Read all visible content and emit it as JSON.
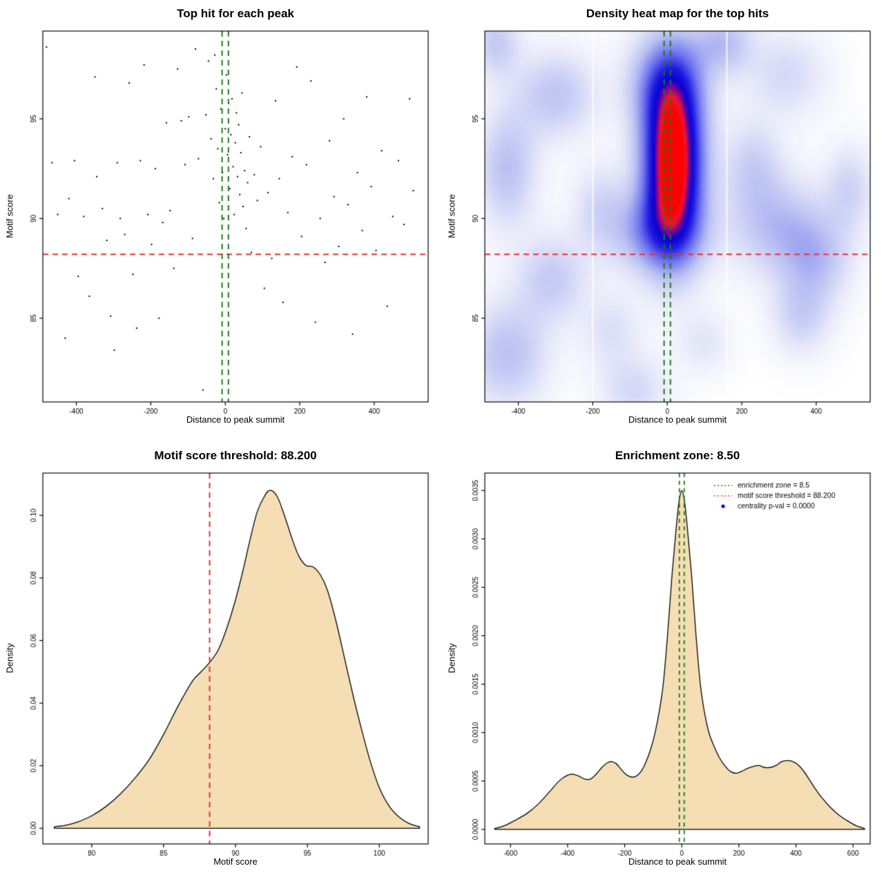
{
  "page": {
    "background": "#ffffff"
  },
  "chart_data": [
    {
      "id": "top-hit-scatter",
      "type": "scatter",
      "title": "Top hit for each peak",
      "xlabel": "Distance to peak summit",
      "ylabel": "Motif score",
      "xlim": [
        -490,
        545
      ],
      "ylim": [
        80.8,
        99.4
      ],
      "xticks": {
        "values": [
          -400,
          -200,
          0,
          200,
          400
        ],
        "labels": [
          "-400",
          "-200",
          "0",
          "200",
          "400"
        ]
      },
      "yticks": {
        "values": [
          85,
          90,
          95
        ],
        "labels": [
          "85",
          "90",
          "95"
        ]
      },
      "hline": {
        "y": 88.2,
        "color": "#e63030",
        "dash": [
          8,
          6
        ],
        "width": 2
      },
      "vlines": {
        "x": [
          -8.5,
          8.5
        ],
        "color": "#1b7a1b",
        "dash": [
          8,
          6
        ],
        "width": 2
      },
      "point_color": "#000000",
      "points": [
        [
          -480,
          98.6
        ],
        [
          -465,
          92.8
        ],
        [
          -450,
          90.2
        ],
        [
          -430,
          84.0
        ],
        [
          -420,
          91.0
        ],
        [
          -405,
          92.9
        ],
        [
          -395,
          87.1
        ],
        [
          -380,
          90.1
        ],
        [
          -365,
          86.1
        ],
        [
          -350,
          97.1
        ],
        [
          -345,
          92.1
        ],
        [
          -330,
          90.5
        ],
        [
          -318,
          88.9
        ],
        [
          -308,
          85.1
        ],
        [
          -298,
          83.4
        ],
        [
          -290,
          92.8
        ],
        [
          -282,
          90.0
        ],
        [
          -270,
          89.2
        ],
        [
          -258,
          96.8
        ],
        [
          -248,
          87.2
        ],
        [
          -238,
          84.5
        ],
        [
          -228,
          92.9
        ],
        [
          -218,
          97.7
        ],
        [
          -208,
          90.2
        ],
        [
          -198,
          88.7
        ],
        [
          -188,
          92.5
        ],
        [
          -178,
          85.0
        ],
        [
          -168,
          89.8
        ],
        [
          -158,
          94.8
        ],
        [
          -148,
          90.4
        ],
        [
          -138,
          87.5
        ],
        [
          -128,
          97.5
        ],
        [
          -118,
          94.9
        ],
        [
          -108,
          92.7
        ],
        [
          -98,
          95.1
        ],
        [
          -88,
          89.0
        ],
        [
          -80,
          98.5
        ],
        [
          -72,
          93.0
        ],
        [
          -60,
          81.4
        ],
        [
          -52,
          95.2
        ],
        [
          -45,
          97.9
        ],
        [
          -38,
          94.0
        ],
        [
          -32,
          92.0
        ],
        [
          -28,
          98.2
        ],
        [
          -24,
          96.5
        ],
        [
          -20,
          93.5
        ],
        [
          -16,
          90.8
        ],
        [
          -12,
          95.5
        ],
        [
          -8,
          92.3
        ],
        [
          -4,
          90.0
        ],
        [
          0,
          94.5
        ],
        [
          3,
          97.2
        ],
        [
          6,
          93.2
        ],
        [
          9,
          95.8
        ],
        [
          12,
          91.5
        ],
        [
          15,
          94.2
        ],
        [
          18,
          96.0
        ],
        [
          21,
          92.6
        ],
        [
          24,
          90.2
        ],
        [
          27,
          93.8
        ],
        [
          30,
          95.3
        ],
        [
          33,
          92.1
        ],
        [
          36,
          94.7
        ],
        [
          39,
          91.2
        ],
        [
          42,
          93.3
        ],
        [
          45,
          96.3
        ],
        [
          48,
          90.6
        ],
        [
          52,
          92.4
        ],
        [
          56,
          89.5
        ],
        [
          60,
          91.8
        ],
        [
          65,
          94.1
        ],
        [
          70,
          88.3
        ],
        [
          78,
          92.2
        ],
        [
          86,
          90.9
        ],
        [
          95,
          93.6
        ],
        [
          105,
          86.5
        ],
        [
          115,
          91.3
        ],
        [
          125,
          88.0
        ],
        [
          135,
          95.9
        ],
        [
          145,
          92.0
        ],
        [
          155,
          85.8
        ],
        [
          168,
          90.3
        ],
        [
          180,
          93.1
        ],
        [
          192,
          97.6
        ],
        [
          205,
          89.1
        ],
        [
          218,
          92.7
        ],
        [
          230,
          96.9
        ],
        [
          242,
          84.8
        ],
        [
          255,
          90.0
        ],
        [
          268,
          87.8
        ],
        [
          280,
          93.9
        ],
        [
          292,
          91.1
        ],
        [
          305,
          88.6
        ],
        [
          318,
          95.0
        ],
        [
          330,
          90.7
        ],
        [
          342,
          84.2
        ],
        [
          355,
          92.3
        ],
        [
          368,
          89.4
        ],
        [
          380,
          96.1
        ],
        [
          392,
          91.6
        ],
        [
          405,
          88.4
        ],
        [
          420,
          93.4
        ],
        [
          435,
          85.6
        ],
        [
          450,
          90.1
        ],
        [
          465,
          92.9
        ],
        [
          480,
          89.7
        ],
        [
          495,
          96.0
        ],
        [
          505,
          91.4
        ]
      ]
    },
    {
      "id": "density-heatmap",
      "type": "heatmap",
      "title": "Density heat map for the top hits",
      "xlabel": "Distance to peak summit",
      "ylabel": "Motif score",
      "xlim": [
        -490,
        545
      ],
      "ylim": [
        80.8,
        99.4
      ],
      "xticks": {
        "values": [
          -400,
          -200,
          0,
          200,
          400
        ],
        "labels": [
          "-400",
          "-200",
          "0",
          "200",
          "400"
        ]
      },
      "yticks": {
        "values": [
          85,
          90,
          95
        ],
        "labels": [
          "85",
          "90",
          "95"
        ]
      },
      "hline": {
        "y": 88.2,
        "color": "#e63030",
        "dash": [
          8,
          6
        ],
        "width": 2
      },
      "vlines": {
        "x": [
          -8.5,
          8.5
        ],
        "color": "#1b7a1b",
        "dash": [
          8,
          6
        ],
        "width": 2
      },
      "white_lines_x": [
        -200,
        160
      ],
      "vmax": 1.3,
      "blobs": [
        [
          15,
          92.8,
          55,
          3.0,
          1.45
        ],
        [
          0,
          96.8,
          70,
          1.7,
          0.45
        ],
        [
          -30,
          89.3,
          85,
          1.4,
          0.4
        ],
        [
          -430,
          92.5,
          55,
          2.0,
          0.3
        ],
        [
          -300,
          96.2,
          75,
          1.5,
          0.28
        ],
        [
          -460,
          98.8,
          45,
          1.2,
          0.25
        ],
        [
          -310,
          87.0,
          65,
          1.5,
          0.25
        ],
        [
          -430,
          83.2,
          75,
          1.8,
          0.3
        ],
        [
          -150,
          84.4,
          55,
          1.3,
          0.15
        ],
        [
          150,
          98.8,
          55,
          1.1,
          0.3
        ],
        [
          320,
          97.2,
          75,
          1.5,
          0.18
        ],
        [
          300,
          89.6,
          90,
          1.7,
          0.3
        ],
        [
          400,
          87.9,
          65,
          1.5,
          0.26
        ],
        [
          360,
          85.1,
          55,
          1.3,
          0.22
        ],
        [
          490,
          91.5,
          45,
          1.5,
          0.2
        ],
        [
          -90,
          81.4,
          65,
          1.2,
          0.18
        ],
        [
          100,
          83.8,
          50,
          1.1,
          0.12
        ],
        [
          230,
          92.6,
          55,
          1.6,
          0.22
        ],
        [
          -180,
          90.6,
          50,
          1.5,
          0.18
        ]
      ],
      "colormap": [
        [
          0.0,
          255,
          255,
          255
        ],
        [
          0.12,
          232,
          234,
          250
        ],
        [
          0.3,
          186,
          192,
          243
        ],
        [
          0.5,
          110,
          115,
          238
        ],
        [
          0.68,
          30,
          25,
          228
        ],
        [
          0.8,
          10,
          0,
          205
        ],
        [
          0.87,
          140,
          0,
          150
        ],
        [
          0.93,
          235,
          25,
          45
        ],
        [
          1.0,
          255,
          0,
          0
        ]
      ]
    },
    {
      "id": "motif-score-density",
      "type": "density",
      "title": "Motif score threshold: 88.200",
      "xlabel": "Motif score",
      "ylabel": "Density",
      "xlim": [
        76.6,
        103.4
      ],
      "ylim": [
        -0.005,
        0.1135
      ],
      "xticks": {
        "values": [
          80,
          85,
          90,
          95,
          100
        ],
        "labels": [
          "80",
          "85",
          "90",
          "95",
          "100"
        ]
      },
      "yticks": {
        "values": [
          0,
          0.02,
          0.04,
          0.06,
          0.08,
          0.1
        ],
        "labels": [
          "0.00",
          "0.02",
          "0.04",
          "0.06",
          "0.08",
          "0.10"
        ]
      },
      "fill": "#f5deb3",
      "stroke": "#000000",
      "vline": {
        "x": 88.2,
        "color": "#e63030",
        "dash": [
          8,
          6
        ],
        "width": 2
      },
      "curve": [
        [
          77.4,
          0.0005
        ],
        [
          78.2,
          0.001
        ],
        [
          79,
          0.002
        ],
        [
          80,
          0.004
        ],
        [
          81,
          0.007
        ],
        [
          82,
          0.011
        ],
        [
          83,
          0.016
        ],
        [
          84,
          0.022
        ],
        [
          85,
          0.03
        ],
        [
          86,
          0.039
        ],
        [
          87,
          0.047
        ],
        [
          87.6,
          0.05
        ],
        [
          88.2,
          0.053
        ],
        [
          88.8,
          0.057
        ],
        [
          89.4,
          0.064
        ],
        [
          90,
          0.073
        ],
        [
          90.5,
          0.082
        ],
        [
          91,
          0.092
        ],
        [
          91.5,
          0.101
        ],
        [
          92,
          0.106
        ],
        [
          92.4,
          0.108
        ],
        [
          92.9,
          0.106
        ],
        [
          93.4,
          0.1
        ],
        [
          93.9,
          0.093
        ],
        [
          94.4,
          0.087
        ],
        [
          94.9,
          0.084
        ],
        [
          95.4,
          0.0835
        ],
        [
          95.9,
          0.081
        ],
        [
          96.4,
          0.076
        ],
        [
          97,
          0.066
        ],
        [
          97.6,
          0.054
        ],
        [
          98.2,
          0.042
        ],
        [
          98.8,
          0.031
        ],
        [
          99.4,
          0.021
        ],
        [
          100,
          0.013
        ],
        [
          100.7,
          0.007
        ],
        [
          101.4,
          0.0035
        ],
        [
          102.1,
          0.0015
        ],
        [
          102.8,
          0.0005
        ]
      ]
    },
    {
      "id": "summit-distance-density",
      "type": "density",
      "title": "Enrichment zone: 8.50",
      "xlabel": "Distance to peak summit",
      "ylabel": "Density",
      "xlim": [
        -690,
        660
      ],
      "ylim": [
        -0.00015,
        0.00368
      ],
      "xticks": {
        "values": [
          -600,
          -400,
          -200,
          0,
          200,
          400,
          600
        ],
        "labels": [
          "-600",
          "-400",
          "-200",
          "0",
          "200",
          "400",
          "600"
        ]
      },
      "yticks": {
        "values": [
          0,
          0.0005,
          0.001,
          0.0015,
          0.002,
          0.0025,
          0.003,
          0.0035
        ],
        "labels": [
          "0.0000",
          "0.0005",
          "0.0010",
          "0.0015",
          "0.0020",
          "0.0025",
          "0.0030",
          "0.0035"
        ]
      },
      "fill": "#f5deb3",
      "stroke": "#000000",
      "vlines": {
        "x": [
          -8.5,
          8.5
        ],
        "color": "#1b7a1b",
        "dash": [
          6,
          5
        ],
        "width": 1.8
      },
      "legend": {
        "items": [
          {
            "type": "line",
            "color": "#1b7a1b",
            "dash": [
              2,
              3
            ],
            "label": "enrichment zone = 8.5"
          },
          {
            "type": "line",
            "color": "#e63030",
            "dash": [
              2,
              3
            ],
            "label": "motif score threshold = 88.200"
          },
          {
            "type": "point",
            "color": "#0000cd",
            "label": "centrality p-val = 0.0000"
          }
        ]
      },
      "curve": [
        [
          -655,
          1e-05
        ],
        [
          -620,
          4e-05
        ],
        [
          -580,
          0.0001
        ],
        [
          -540,
          0.00017
        ],
        [
          -500,
          0.00027
        ],
        [
          -460,
          0.0004
        ],
        [
          -430,
          0.0005
        ],
        [
          -400,
          0.00056
        ],
        [
          -380,
          0.00057
        ],
        [
          -360,
          0.00055
        ],
        [
          -340,
          0.00052
        ],
        [
          -320,
          0.00052
        ],
        [
          -300,
          0.00057
        ],
        [
          -280,
          0.00064
        ],
        [
          -260,
          0.00069
        ],
        [
          -245,
          0.0007
        ],
        [
          -230,
          0.00068
        ],
        [
          -215,
          0.00063
        ],
        [
          -200,
          0.00058
        ],
        [
          -185,
          0.00055
        ],
        [
          -170,
          0.00054
        ],
        [
          -155,
          0.00056
        ],
        [
          -140,
          0.00061
        ],
        [
          -125,
          0.0007
        ],
        [
          -110,
          0.00082
        ],
        [
          -95,
          0.00098
        ],
        [
          -80,
          0.0012
        ],
        [
          -65,
          0.0015
        ],
        [
          -50,
          0.002
        ],
        [
          -35,
          0.0026
        ],
        [
          -20,
          0.0031
        ],
        [
          -10,
          0.00338
        ],
        [
          0,
          0.0035
        ],
        [
          10,
          0.00338
        ],
        [
          20,
          0.0031
        ],
        [
          35,
          0.0026
        ],
        [
          50,
          0.002
        ],
        [
          65,
          0.0015
        ],
        [
          80,
          0.0012
        ],
        [
          95,
          0.001
        ],
        [
          110,
          0.00088
        ],
        [
          130,
          0.00075
        ],
        [
          150,
          0.00066
        ],
        [
          170,
          0.0006
        ],
        [
          190,
          0.00058
        ],
        [
          210,
          0.0006
        ],
        [
          230,
          0.00063
        ],
        [
          250,
          0.00065
        ],
        [
          270,
          0.00066
        ],
        [
          290,
          0.00064
        ],
        [
          310,
          0.00064
        ],
        [
          330,
          0.00066
        ],
        [
          350,
          0.0007
        ],
        [
          370,
          0.00071
        ],
        [
          390,
          0.0007
        ],
        [
          410,
          0.00066
        ],
        [
          430,
          0.00059
        ],
        [
          450,
          0.0005
        ],
        [
          470,
          0.00041
        ],
        [
          490,
          0.00033
        ],
        [
          520,
          0.00023
        ],
        [
          550,
          0.00015
        ],
        [
          580,
          9e-05
        ],
        [
          610,
          4e-05
        ],
        [
          640,
          1e-05
        ]
      ]
    }
  ]
}
